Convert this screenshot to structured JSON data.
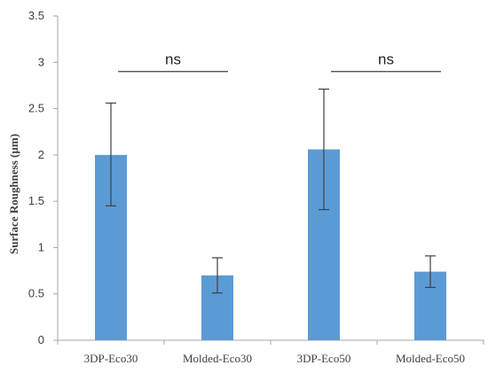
{
  "chart_data": {
    "type": "bar",
    "title": "",
    "xlabel": "",
    "ylabel": "Surface Roughness (µm)",
    "categories": [
      "3DP-Eco30",
      "Molded-Eco30",
      "3DP-Eco50",
      "Molded-Eco50"
    ],
    "values": [
      2.0,
      0.7,
      2.06,
      0.74
    ],
    "error_low": [
      1.45,
      0.51,
      1.41,
      0.57
    ],
    "error_high": [
      2.56,
      0.89,
      2.71,
      0.91
    ],
    "ylim": [
      0,
      3.5
    ],
    "yticks": [
      "0",
      "0.5",
      "1",
      "1.5",
      "2",
      "2.5",
      "3",
      "3.5"
    ],
    "grid": false,
    "legend": "none",
    "bar_color": "#5b9bd5",
    "annotations": [
      {
        "text": "ns",
        "from": 0,
        "to": 1
      },
      {
        "text": "ns",
        "from": 2,
        "to": 3
      }
    ]
  }
}
